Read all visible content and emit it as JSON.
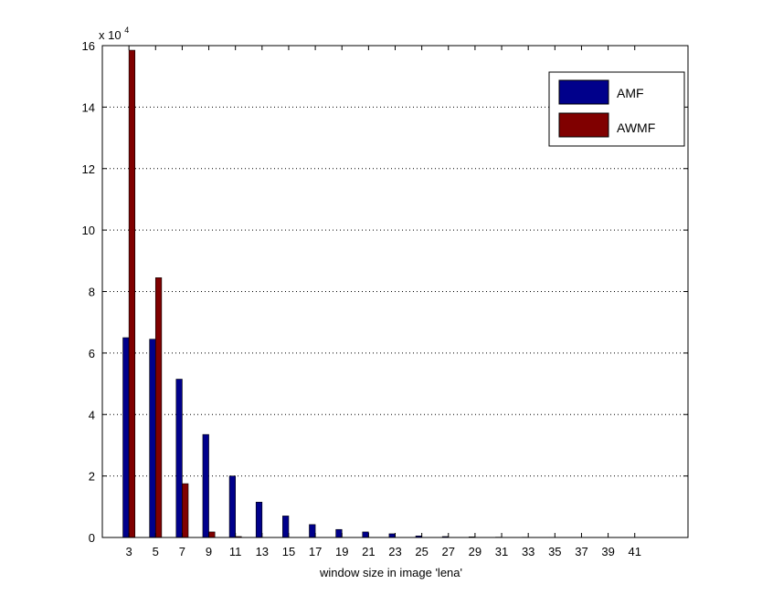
{
  "chart_data": {
    "type": "bar",
    "categories": [
      "3",
      "5",
      "7",
      "9",
      "11",
      "13",
      "15",
      "17",
      "19",
      "21",
      "23",
      "25",
      "27",
      "29",
      "31",
      "33",
      "35",
      "37",
      "39",
      "41"
    ],
    "series": [
      {
        "name": "AMF",
        "color": "#00008b",
        "values": [
          65000,
          64500,
          51500,
          33500,
          20000,
          11500,
          7000,
          4200,
          2600,
          1800,
          1200,
          500,
          300,
          200,
          100,
          80,
          60,
          40,
          30,
          20
        ]
      },
      {
        "name": "AWMF",
        "color": "#800000",
        "values": [
          158500,
          84500,
          17500,
          1800,
          300,
          0,
          0,
          0,
          0,
          0,
          0,
          0,
          0,
          0,
          0,
          0,
          0,
          0,
          0,
          0
        ]
      }
    ],
    "title": "",
    "xlabel": "window size in image 'lena'",
    "ylabel": "",
    "ylim": [
      0,
      160000
    ],
    "xlim": [
      1,
      45
    ],
    "yticks": [
      "0",
      "2",
      "4",
      "6",
      "8",
      "10",
      "12",
      "14",
      "16"
    ],
    "y_multiplier_base": "x 10",
    "y_multiplier_exp": "4",
    "grid": "dotted",
    "legend_position": "top-right"
  }
}
